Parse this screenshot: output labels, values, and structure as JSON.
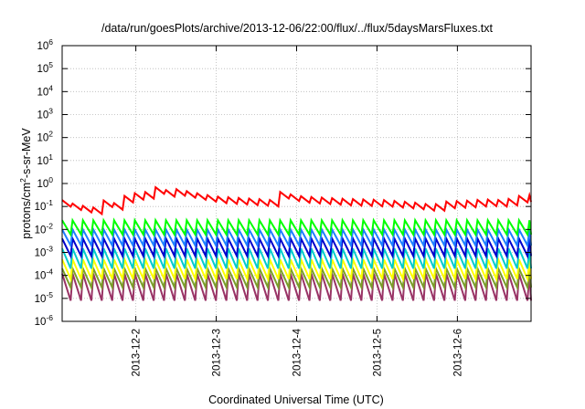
{
  "chart_data": {
    "type": "line",
    "title": "/data/run/goesPlots/archive/2013-12-06/22:00/flux/../flux/5daysMarsFluxes.txt",
    "xlabel": "Coordinated Universal Time (UTC)",
    "ylabel_main": "protons/cm",
    "ylabel_sup": "2",
    "ylabel_rest": "-s-sr-MeV",
    "y_scale": "log",
    "ylim": [
      1e-06,
      1000000.0
    ],
    "xlim": [
      "2013-12-01T02:00",
      "2013-12-06T22:00"
    ],
    "y_ticks": [
      {
        "value": 1e-06,
        "base": "10",
        "exp": "-6"
      },
      {
        "value": 1e-05,
        "base": "10",
        "exp": "-5"
      },
      {
        "value": 0.0001,
        "base": "10",
        "exp": "-4"
      },
      {
        "value": 0.001,
        "base": "10",
        "exp": "-3"
      },
      {
        "value": 0.01,
        "base": "10",
        "exp": "-2"
      },
      {
        "value": 0.1,
        "base": "10",
        "exp": "-1"
      },
      {
        "value": 1,
        "base": "10",
        "exp": "0"
      },
      {
        "value": 10,
        "base": "10",
        "exp": "1"
      },
      {
        "value": 100,
        "base": "10",
        "exp": "2"
      },
      {
        "value": 1000,
        "base": "10",
        "exp": "3"
      },
      {
        "value": 10000,
        "base": "10",
        "exp": "4"
      },
      {
        "value": 100000,
        "base": "10",
        "exp": "5"
      },
      {
        "value": 1000000,
        "base": "10",
        "exp": "6"
      }
    ],
    "x_ticks": [
      {
        "value": "2013-12-02T00:00",
        "label": "2013-12-2"
      },
      {
        "value": "2013-12-03T00:00",
        "label": "2013-12-3"
      },
      {
        "value": "2013-12-04T00:00",
        "label": "2013-12-4"
      },
      {
        "value": "2013-12-05T00:00",
        "label": "2013-12-5"
      },
      {
        "value": "2013-12-06T00:00",
        "label": "2013-12-6"
      }
    ],
    "grid": true,
    "legend": "none",
    "series": [
      {
        "color": "#993366",
        "width": 2.0,
        "x": [
          "2013-12-01T02:00",
          "2013-12-06T22:00"
        ],
        "y": [
          1.5e-05,
          1.5e-05
        ],
        "oscillation": {
          "period_hours": 3.1,
          "low": 8e-06,
          "high": 0.00012
        }
      },
      {
        "color": "#7b9e2a",
        "width": 2.0,
        "x": [
          "2013-12-01T02:00",
          "2013-12-06T22:00"
        ],
        "y": [
          6e-05,
          6e-05
        ],
        "oscillation": {
          "period_hours": 3.1,
          "low": 3e-05,
          "high": 0.0002
        }
      },
      {
        "color": "#ffff00",
        "width": 2.0,
        "x": [
          "2013-12-01T02:00",
          "2013-12-06T22:00"
        ],
        "y": [
          0.00015,
          0.00015
        ],
        "oscillation": {
          "period_hours": 3.1,
          "low": 7e-05,
          "high": 0.0005
        }
      },
      {
        "color": "#00cccc",
        "width": 2.0,
        "x": [
          "2013-12-01T02:00",
          "2013-12-06T22:00"
        ],
        "y": [
          0.0005,
          0.0005
        ],
        "oscillation": {
          "period_hours": 3.1,
          "low": 0.0002,
          "high": 0.0015
        }
      },
      {
        "color": "#0000cc",
        "width": 2.0,
        "x": [
          "2013-12-01T02:00",
          "2013-12-06T22:00"
        ],
        "y": [
          0.0015,
          0.0015
        ],
        "oscillation": {
          "period_hours": 3.1,
          "low": 0.0007,
          "high": 0.004
        }
      },
      {
        "color": "#1e7fff",
        "width": 2.0,
        "x": [
          "2013-12-01T02:00",
          "2013-12-06T22:00"
        ],
        "y": [
          0.004,
          0.004
        ],
        "oscillation": {
          "period_hours": 3.1,
          "low": 0.002,
          "high": 0.01
        }
      },
      {
        "color": "#00ff00",
        "width": 2.0,
        "x": [
          "2013-12-01T02:00",
          "2013-12-06T22:00"
        ],
        "y": [
          0.01,
          0.01
        ],
        "oscillation": {
          "period_hours": 3.1,
          "low": 0.006,
          "high": 0.025
        }
      },
      {
        "color": "#ff0000",
        "width": 2.0,
        "x": [
          "2013-12-01T02:00",
          "2013-12-01T06:00",
          "2013-12-01T08:00",
          "2013-12-01T12:00",
          "2013-12-01T14:00",
          "2013-12-01T18:00",
          "2013-12-01T19:00",
          "2013-12-01T23:00",
          "2013-12-02T00:00",
          "2013-12-02T04:00",
          "2013-12-02T05:00",
          "2013-12-02T10:00",
          "2013-12-02T11:00",
          "2013-12-02T20:00",
          "2013-12-03T00:00",
          "2013-12-03T08:00",
          "2013-12-03T14:00",
          "2013-12-03T17:00",
          "2013-12-03T18:00",
          "2013-12-03T22:00",
          "2013-12-04T02:00",
          "2013-12-04T08:00",
          "2013-12-04T14:00",
          "2013-12-04T20:00",
          "2013-12-05T02:00",
          "2013-12-05T08:00",
          "2013-12-05T14:00",
          "2013-12-05T16:00",
          "2013-12-05T20:00",
          "2013-12-06T02:00",
          "2013-12-06T08:00",
          "2013-12-06T14:00",
          "2013-12-06T20:00",
          "2013-12-06T22:00"
        ],
        "y": [
          0.14,
          0.09,
          0.08,
          0.065,
          0.14,
          0.1,
          0.25,
          0.17,
          0.35,
          0.3,
          0.55,
          0.35,
          0.45,
          0.25,
          0.2,
          0.17,
          0.15,
          0.14,
          0.35,
          0.25,
          0.2,
          0.18,
          0.16,
          0.15,
          0.14,
          0.12,
          0.1,
          0.08,
          0.12,
          0.13,
          0.15,
          0.14,
          0.25,
          0.22
        ],
        "oscillation": {
          "period_hours": 3.1,
          "low_factor": 0.7,
          "high_factor": 1.35
        }
      }
    ]
  }
}
